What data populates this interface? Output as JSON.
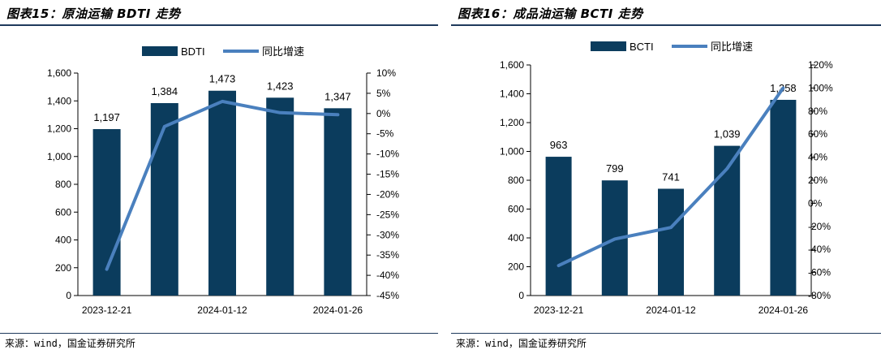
{
  "chart_data": [
    {
      "type": "bar",
      "title": "图表15：原油运输 BDTI 走势",
      "source": "来源：wind，国金证券研究所",
      "categories": [
        "2023-12-21",
        "",
        "2024-01-12",
        "",
        "2024-01-26"
      ],
      "bar_series": {
        "name": "BDTI",
        "values": [
          1197,
          1384,
          1473,
          1423,
          1347
        ],
        "color": "#0b3c5d"
      },
      "line_series": {
        "name": "同比增速",
        "values": [
          -38.5,
          -3.2,
          3.0,
          0.2,
          -0.3
        ],
        "color": "#4a80be"
      },
      "data_labels": [
        "1,197",
        "1,384",
        "1,473",
        "1,423",
        "1,347"
      ],
      "ylim_left": [
        0,
        1600
      ],
      "yticks_left": [
        "0",
        "200",
        "400",
        "600",
        "800",
        "1,000",
        "1,200",
        "1,400",
        "1,600"
      ],
      "ylim_right": [
        -45,
        10
      ],
      "yticks_right": [
        "-45%",
        "-40%",
        "-35%",
        "-30%",
        "-25%",
        "-20%",
        "-15%",
        "-10%",
        "-5%",
        "0%",
        "5%",
        "10%"
      ],
      "legend_position": "top-center",
      "grid": false
    },
    {
      "type": "bar",
      "title": "图表16：成品油运输 BCTI 走势",
      "source": "来源：wind，国金证券研究所",
      "categories": [
        "2023-12-21",
        "",
        "2024-01-12",
        "",
        "2024-01-26"
      ],
      "bar_series": {
        "name": "BCTI",
        "values": [
          963,
          799,
          741,
          1039,
          1358
        ],
        "color": "#0b3c5d"
      },
      "line_series": {
        "name": "同比增速",
        "values": [
          -54,
          -31,
          -21,
          30,
          100
        ],
        "color": "#4a80be"
      },
      "data_labels": [
        "963",
        "799",
        "741",
        "1,039",
        "1,358"
      ],
      "ylim_left": [
        0,
        1600
      ],
      "yticks_left": [
        "0",
        "200",
        "400",
        "600",
        "800",
        "1,000",
        "1,200",
        "1,400",
        "1,600"
      ],
      "ylim_right": [
        -80,
        120
      ],
      "yticks_right": [
        "-80%",
        "-60%",
        "-40%",
        "-20%",
        "0%",
        "20%",
        "40%",
        "60%",
        "80%",
        "100%",
        "120%"
      ],
      "legend_position": "top-center",
      "grid": false
    }
  ]
}
